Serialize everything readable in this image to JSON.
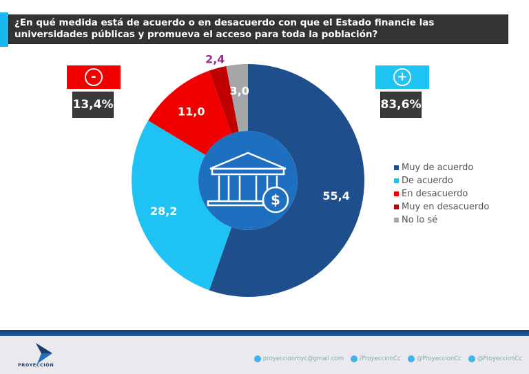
{
  "title": "¿En qué medida está de acuerdo o en desacuerdo con que el Estado financie las universidades públicas y promueva el acceso para toda la población?",
  "negative": {
    "symbol": "-",
    "value": "13,4%",
    "color": "#f20000"
  },
  "positive": {
    "symbol": "+",
    "value": "83,6%",
    "color": "#1fc3f3"
  },
  "chart_data": {
    "type": "pie",
    "donut": true,
    "center_icon": "university-building-dollar-icon",
    "categories": [
      "Muy de acuerdo",
      "De acuerdo",
      "En desacuerdo",
      "Muy en desacuerdo",
      "No lo sé"
    ],
    "values": [
      55.4,
      28.2,
      11.0,
      2.4,
      3.0
    ],
    "labels": [
      "55,4",
      "28,2",
      "11,0",
      "2,4",
      "3,0"
    ],
    "colors": [
      "#1f4e8c",
      "#1fc3f3",
      "#f20000",
      "#c00000",
      "#a6a6a6"
    ],
    "legend_position": "right"
  },
  "footer": {
    "logo_text": "PROYECCIÓN",
    "email": "proyeccionmyc@gmail.com",
    "facebook": "/ProyeccionCc",
    "twitter": "@ProyeccionCc",
    "instagram": "@ProyeccionCc"
  }
}
